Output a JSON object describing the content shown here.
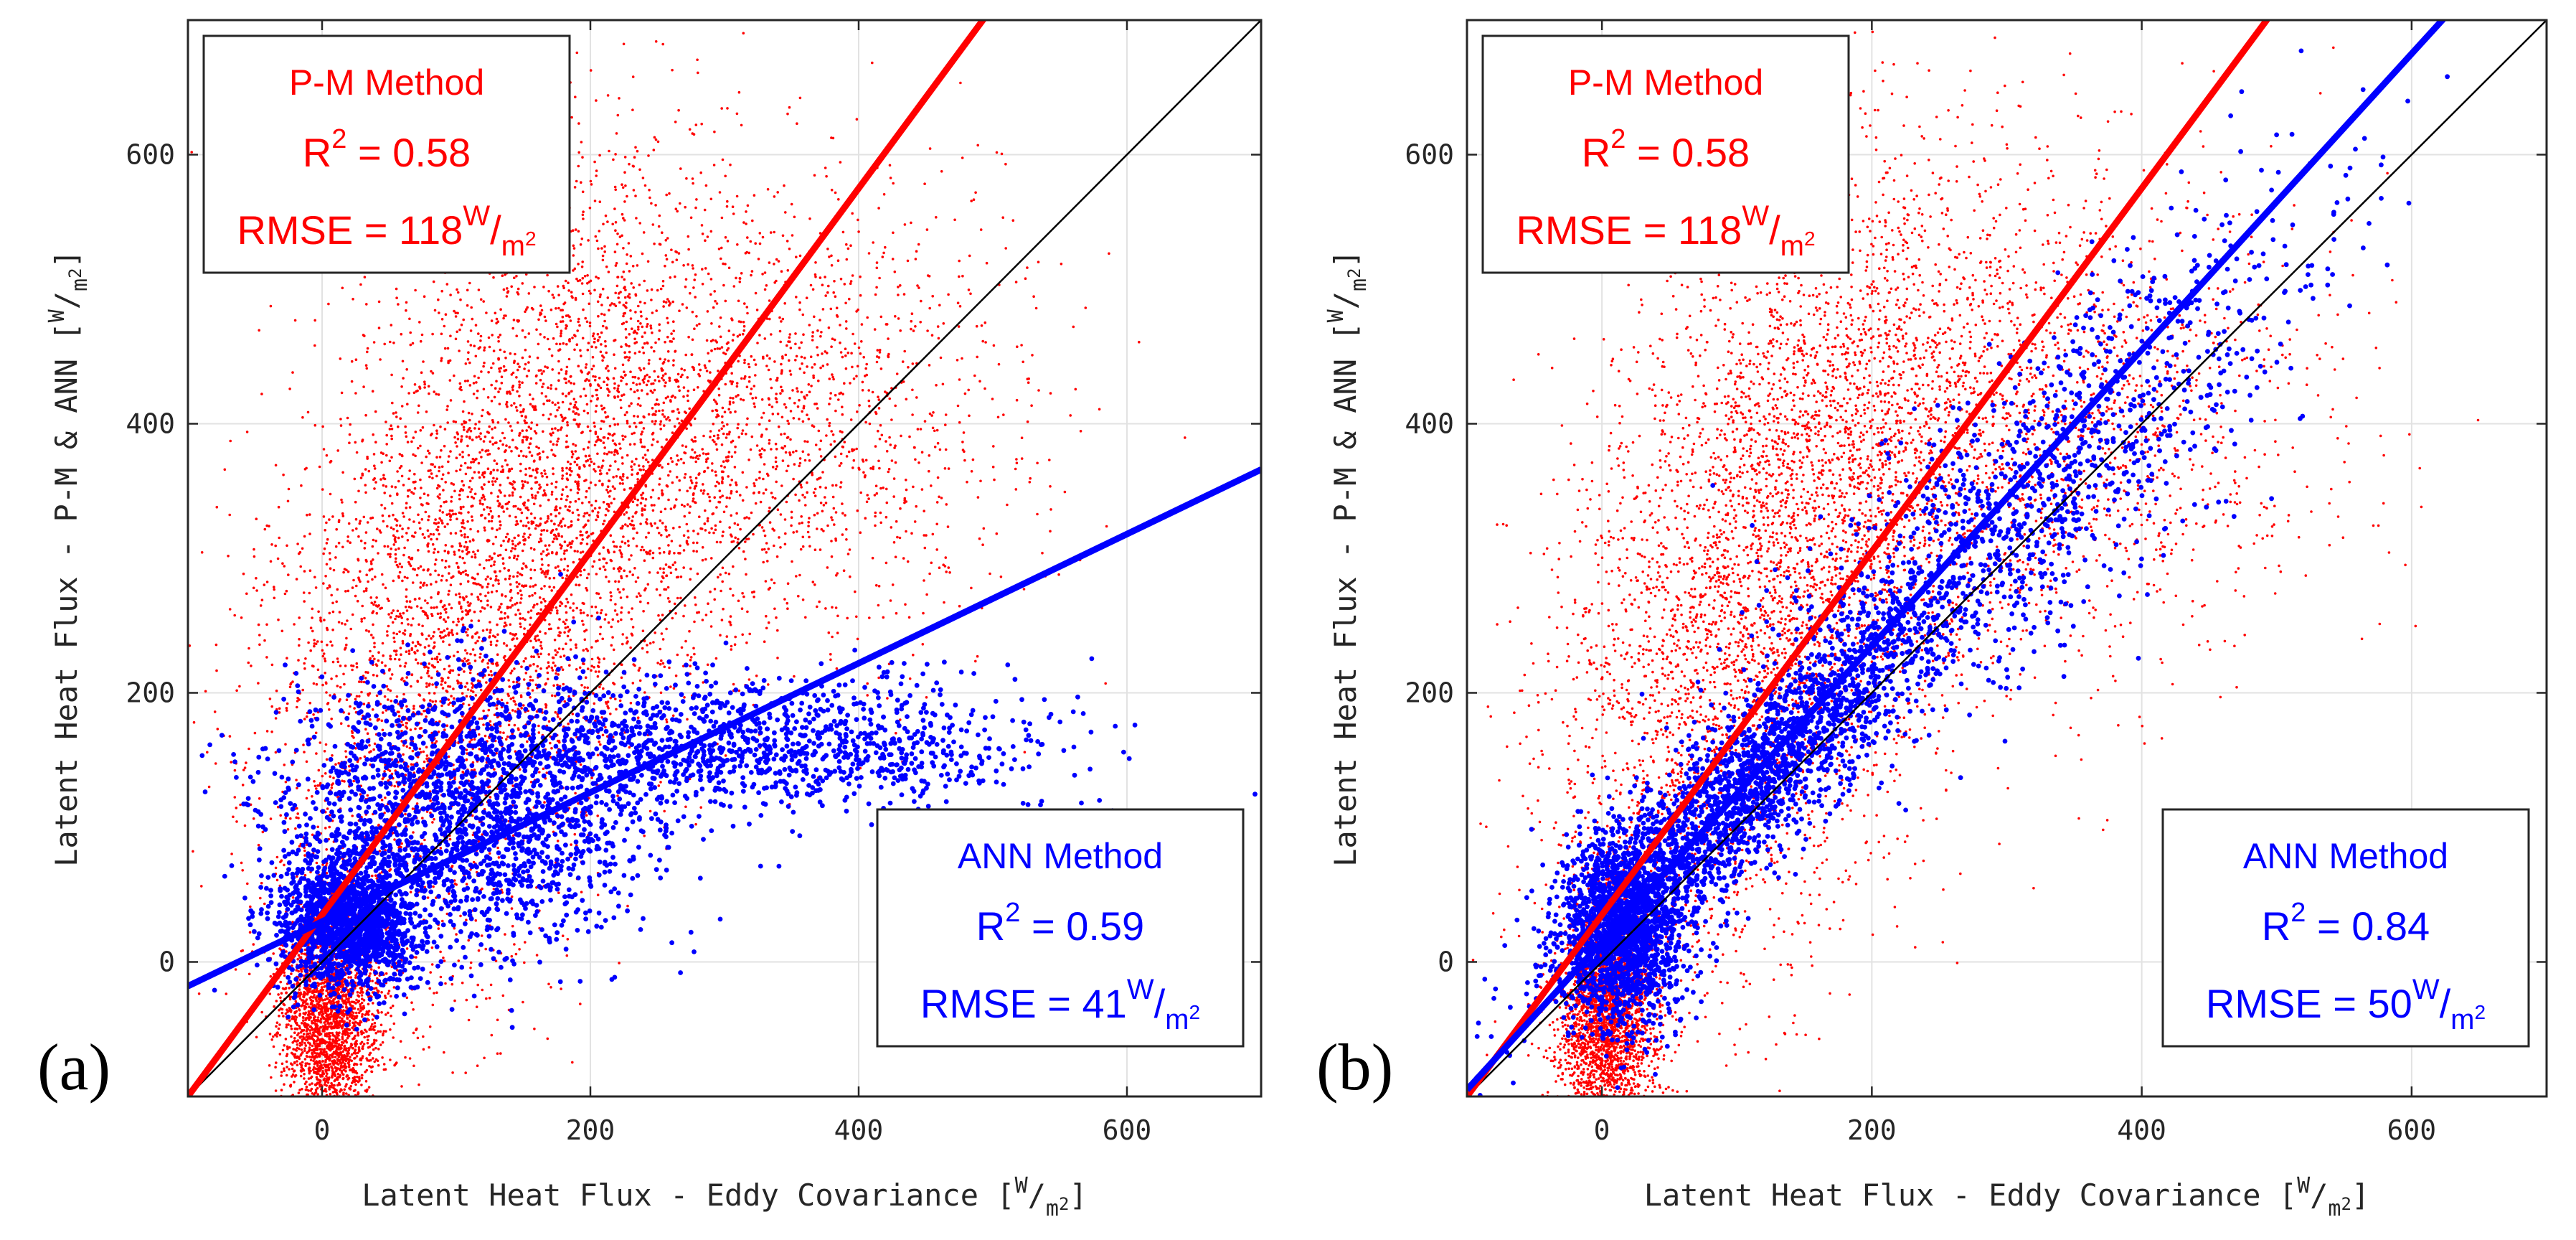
{
  "chart_data": [
    {
      "type": "scatter",
      "panel_label": "(a)",
      "xlabel_prefix": "Latent Heat Flux - Eddy Covariance [",
      "ylabel_prefix": "Latent Heat Flux - P-M & ANN [",
      "unit_num": "W",
      "unit_sep": "/",
      "unit_den": "m",
      "unit_exp": "2",
      "unit_close": "]",
      "xlim": [
        -100,
        700
      ],
      "ylim": [
        -100,
        700
      ],
      "xticks": [
        0,
        200,
        400,
        600
      ],
      "yticks": [
        0,
        200,
        400,
        600
      ],
      "grid": true,
      "identity_line": {
        "color": "#000000",
        "slope": 1,
        "intercept": 0
      },
      "series": [
        {
          "name": "P-M Method",
          "color": "#ff0000",
          "fit": {
            "slope": 1.35,
            "intercept": 35
          },
          "stats": {
            "method": "P-M Method",
            "r2_label": "R",
            "r2_exp": "2",
            "r2_value": " = 0.58",
            "rmse_label": "RMSE = 118",
            "box_position": "top-left"
          },
          "cloud": {
            "seed": 11,
            "n": 9000,
            "clusters": [
              {
                "w": 0.3,
                "xm": 5,
                "xs": 18,
                "ym": -40,
                "ys": 45
              },
              {
                "w": 0.42,
                "xm": 150,
                "xs": 80,
                "ym": 330,
                "ys": 130,
                "corr": 0.35
              },
              {
                "w": 0.18,
                "xm": 330,
                "xs": 100,
                "ym": 400,
                "ys": 90
              },
              {
                "w": 0.1,
                "xm": 60,
                "xs": 60,
                "ym": 150,
                "ys": 110
              }
            ]
          }
        },
        {
          "name": "ANN Method",
          "color": "#0000ff",
          "fit": {
            "slope": 0.48,
            "intercept": 30
          },
          "stats": {
            "method": "ANN Method",
            "r2_label": "R",
            "r2_exp": "2",
            "r2_value": " = 0.59",
            "rmse_label": "RMSE = 41",
            "box_position": "bottom-right"
          },
          "cloud": {
            "seed": 23,
            "n": 5000,
            "clusters": [
              {
                "w": 0.35,
                "xm": 20,
                "xs": 25,
                "ym": 30,
                "ys": 25
              },
              {
                "w": 0.4,
                "xm": 110,
                "xs": 70,
                "ym": 110,
                "ys": 50
              },
              {
                "w": 0.25,
                "xm": 320,
                "xs": 110,
                "ym": 160,
                "ys": 25
              }
            ]
          }
        }
      ]
    },
    {
      "type": "scatter",
      "panel_label": "(b)",
      "xlabel_prefix": "Latent Heat Flux - Eddy Covariance [",
      "ylabel_prefix": "Latent Heat Flux - P-M & ANN [",
      "unit_num": "W",
      "unit_sep": "/",
      "unit_den": "m",
      "unit_exp": "2",
      "unit_close": "]",
      "xlim": [
        -100,
        700
      ],
      "ylim": [
        -100,
        700
      ],
      "xticks": [
        0,
        200,
        400,
        600
      ],
      "yticks": [
        0,
        200,
        400,
        600
      ],
      "grid": true,
      "identity_line": {
        "color": "#000000",
        "slope": 1,
        "intercept": 0
      },
      "series": [
        {
          "name": "P-M Method",
          "color": "#ff0000",
          "fit": {
            "slope": 1.35,
            "intercept": 35
          },
          "stats": {
            "method": "P-M Method",
            "r2_label": "R",
            "r2_exp": "2",
            "r2_value": " = 0.58",
            "rmse_label": "RMSE = 118",
            "box_position": "top-left"
          },
          "cloud": {
            "seed": 31,
            "n": 9000,
            "clusters": [
              {
                "w": 0.3,
                "xm": 5,
                "xs": 18,
                "ym": -40,
                "ys": 45
              },
              {
                "w": 0.42,
                "xm": 150,
                "xs": 80,
                "ym": 330,
                "ys": 130,
                "corr": 0.35
              },
              {
                "w": 0.18,
                "xm": 330,
                "xs": 100,
                "ym": 400,
                "ys": 90
              },
              {
                "w": 0.1,
                "xm": 60,
                "xs": 60,
                "ym": 150,
                "ys": 110
              }
            ]
          }
        },
        {
          "name": "ANN Method",
          "color": "#0000ff",
          "fit": {
            "slope": 1.1,
            "intercept": 15
          },
          "stats": {
            "method": "ANN Method",
            "r2_label": "R",
            "r2_exp": "2",
            "r2_value": " = 0.84",
            "rmse_label": "RMSE = 50",
            "box_position": "bottom-right"
          },
          "cloud": {
            "seed": 47,
            "n": 5000,
            "clusters": [
              {
                "w": 0.35,
                "xm": 15,
                "xs": 22,
                "ym": 25,
                "ys": 35
              },
              {
                "w": 0.4,
                "xm": 110,
                "xs": 70,
                "ym": 130,
                "ys": 70,
                "corr": 0.9
              },
              {
                "w": 0.25,
                "xm": 300,
                "xs": 110,
                "ym": 330,
                "ys": 110,
                "corr": 0.85
              }
            ]
          }
        }
      ]
    }
  ]
}
